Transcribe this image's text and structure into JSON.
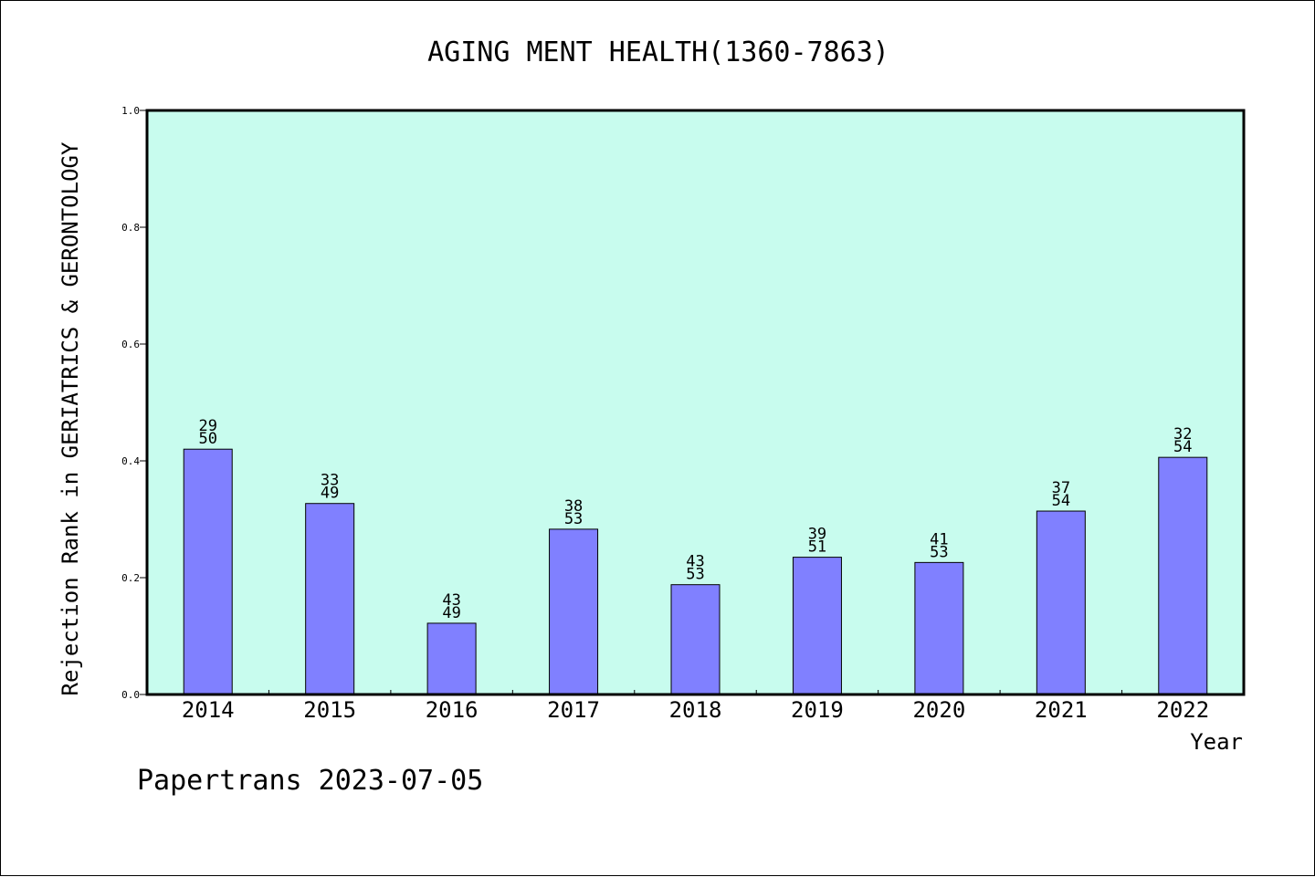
{
  "chart_data": {
    "type": "bar",
    "title": "AGING MENT HEALTH(1360-7863)",
    "xlabel": "Year",
    "ylabel": "Rejection Rank in GERIATRICS & GERONTOLOGY",
    "categories": [
      "2014",
      "2015",
      "2016",
      "2017",
      "2018",
      "2019",
      "2020",
      "2021",
      "2022"
    ],
    "series": [
      {
        "values": [
          0.42,
          0.327,
          0.122,
          0.283,
          0.188,
          0.235,
          0.226,
          0.314,
          0.406
        ],
        "rank": [
          "29",
          "33",
          "43",
          "38",
          "43",
          "39",
          "41",
          "37",
          "32"
        ],
        "total": [
          "50",
          "49",
          "49",
          "53",
          "53",
          "51",
          "53",
          "54",
          "54"
        ]
      }
    ],
    "ylim": [
      0,
      1.0
    ],
    "yticks": [
      "0.0",
      "0.2",
      "0.4",
      "0.6",
      "0.8",
      "1.0"
    ],
    "grid": false,
    "colors": {
      "plot_background": "#c8fcee",
      "bar_fill": "#8080ff",
      "bar_stroke": "#000000"
    }
  },
  "footer": "Papertrans 2023-07-05"
}
